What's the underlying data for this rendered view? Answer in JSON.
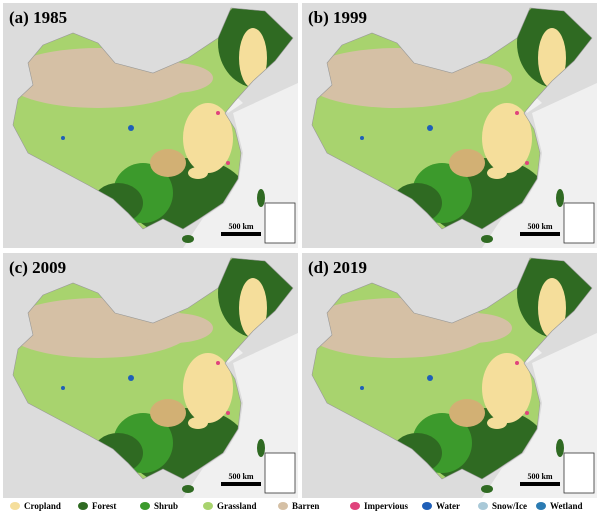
{
  "panels": [
    {
      "title": "(a) 1985",
      "scale_label": "500 km"
    },
    {
      "title": "(b) 1999",
      "scale_label": "500 km"
    },
    {
      "title": "(c) 2009",
      "scale_label": "500 km"
    },
    {
      "title": "(d) 2019",
      "scale_label": "500 km"
    }
  ],
  "legend": [
    {
      "label": "Cropland",
      "color": "#f5de9b"
    },
    {
      "label": "Forest",
      "color": "#2f6a22"
    },
    {
      "label": "Shrub",
      "color": "#3c9a2c"
    },
    {
      "label": "Grassland",
      "color": "#a8d36e"
    },
    {
      "label": "Barren",
      "color": "#d5c0a5"
    },
    {
      "label": "Impervious",
      "color": "#e0437c"
    },
    {
      "label": "Water",
      "color": "#1f5fb8"
    },
    {
      "label": "Snow/Ice",
      "color": "#a9c9d8"
    },
    {
      "label": "Wetland",
      "color": "#2b7bb2"
    }
  ]
}
